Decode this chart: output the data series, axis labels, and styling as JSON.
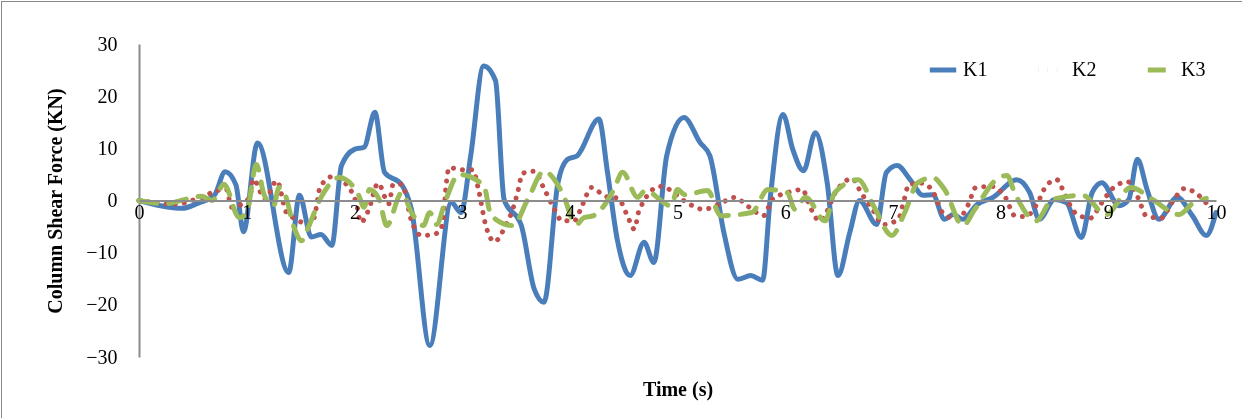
{
  "chart_data": {
    "type": "line",
    "xlabel": "Time (s)",
    "ylabel": "Column Shear Force (KN)",
    "xlim": [
      0,
      10
    ],
    "xticks": [
      0,
      1,
      2,
      3,
      4,
      5,
      6,
      7,
      8,
      9,
      10
    ],
    "ylim": [
      -30,
      30
    ],
    "yticks": [
      -30,
      -20,
      -10,
      0,
      10,
      20,
      30
    ],
    "grid": false,
    "legend": "top right",
    "marker": "none",
    "series": [
      {
        "name": "K1",
        "color": "#4a7ebb",
        "line_style": "solid",
        "x": [
          0,
          0.2,
          0.4,
          0.55,
          0.7,
          0.8,
          0.9,
          0.97,
          1.1,
          1.39,
          1.49,
          1.6,
          1.69,
          1.79,
          1.88,
          2.0,
          2.09,
          2.19,
          2.28,
          2.44,
          2.53,
          2.7,
          2.9,
          2.99,
          3.08,
          3.2,
          3.31,
          3.39,
          3.55,
          3.67,
          3.76,
          3.89,
          3.98,
          4.07,
          4.27,
          4.35,
          4.44,
          4.56,
          4.69,
          4.78,
          4.9,
          5.06,
          5.21,
          5.3,
          5.43,
          5.56,
          5.68,
          5.79,
          5.86,
          5.98,
          6.07,
          6.17,
          6.28,
          6.39,
          6.49,
          6.6,
          6.69,
          6.85,
          6.94,
          7.04,
          7.16,
          7.28,
          7.37,
          7.48,
          7.56,
          7.65,
          7.78,
          7.93,
          8.15,
          8.27,
          8.36,
          8.5,
          8.61,
          8.75,
          8.85,
          8.94,
          9.1,
          9.19,
          9.27,
          9.36,
          9.47,
          9.64,
          9.78,
          9.91,
          10
        ],
        "values": [
          0,
          -1,
          -1.5,
          -0.5,
          1,
          5.5,
          3,
          -6,
          11,
          -13.8,
          1,
          -7,
          -6.5,
          -8.6,
          6.7,
          9.8,
          10.2,
          16.9,
          5.4,
          3,
          -1.7,
          -27.8,
          -0.4,
          -2.3,
          8.6,
          25.8,
          23,
          0.2,
          -4.8,
          -17,
          -19.5,
          3.4,
          7.9,
          8.6,
          15.6,
          5.4,
          -7.4,
          -14.4,
          -8,
          -11.9,
          8.6,
          15.9,
          11.1,
          8.6,
          -6.1,
          -15.1,
          -14.4,
          -15.3,
          0.2,
          16.5,
          9.8,
          5.7,
          13,
          3.4,
          -14.4,
          -6.1,
          0,
          -4.6,
          5.4,
          6.7,
          4,
          1,
          1.1,
          -3.6,
          -2.7,
          -3.6,
          -0.8,
          0.6,
          4,
          1.5,
          -3.6,
          0.2,
          -0.4,
          -7.1,
          1.5,
          3.4,
          -1,
          0.2,
          7.9,
          2.1,
          -3.6,
          0.6,
          -2.9,
          -6.7,
          -2.3
        ]
      },
      {
        "name": "K2",
        "color": "#c0504d",
        "line_style": "dotted",
        "x": [
          0,
          0.35,
          0.52,
          0.81,
          0.86,
          1.03,
          1.06,
          1.17,
          1.28,
          1.37,
          1.6,
          1.65,
          1.68,
          1.8,
          1.94,
          2.02,
          2.06,
          2.13,
          2.22,
          2.32,
          2.36,
          2.44,
          2.53,
          2.62,
          2.74,
          2.82,
          2.85,
          2.88,
          2.99,
          3.1,
          3.15,
          3.22,
          3.3,
          3.4,
          3.47,
          3.52,
          3.56,
          3.67,
          3.76,
          3.84,
          3.93,
          4.04,
          4.12,
          4.2,
          4.33,
          4.45,
          4.53,
          4.6,
          4.64,
          4.84,
          5.12,
          5.24,
          5.38,
          5.53,
          5.66,
          5.8,
          5.88,
          6.02,
          6.16,
          6.23,
          6.32,
          6.49,
          6.62,
          6.71,
          6.81,
          6.91,
          7.05,
          7.1,
          7.15,
          7.28,
          7.39,
          7.46,
          7.6,
          7.7,
          7.77,
          7.92,
          8.05,
          8.13,
          8.23,
          8.34,
          8.42,
          8.52,
          8.6,
          8.69,
          8.83,
          8.94,
          9.04,
          9.18,
          9.28,
          9.35,
          9.49,
          9.59,
          9.71,
          9.82,
          9.94
        ],
        "values": [
          0,
          -0.7,
          0.2,
          2.2,
          -1.3,
          0.6,
          4.1,
          0.3,
          3.8,
          -2.3,
          -4.5,
          -1,
          2.5,
          4.6,
          2.7,
          -0.7,
          -4.2,
          -1.9,
          3.3,
          -0.6,
          3.1,
          3.1,
          -3.9,
          -6.7,
          -6.5,
          -4.6,
          2.7,
          6.3,
          5.9,
          5.9,
          2.3,
          -4.8,
          -7.9,
          -5,
          -1.7,
          1.9,
          5.2,
          5.6,
          2.3,
          -1,
          -3.9,
          -3.9,
          -0.7,
          2.5,
          0.8,
          0.4,
          -2.7,
          -5.5,
          -2.1,
          2.7,
          -0.8,
          -1.7,
          -0.8,
          0.6,
          -1.2,
          -2.9,
          0.2,
          1.5,
          2.1,
          -1.2,
          -3.9,
          2.3,
          4.2,
          1.3,
          -1.7,
          -4.6,
          -3.6,
          -0.2,
          3.1,
          3.3,
          1,
          -2.3,
          -3.6,
          -0.8,
          2.5,
          2.7,
          0.4,
          -2.9,
          -3.1,
          -0.6,
          2.7,
          4,
          1,
          -2.3,
          -3.4,
          -0.4,
          2.3,
          3.6,
          0.4,
          -2.9,
          -3.4,
          -0.4,
          2.3,
          1.3,
          -1.2
        ]
      },
      {
        "name": "K3",
        "color": "#9bbb59",
        "line_style": "dashed",
        "x": [
          0,
          0.24,
          0.58,
          0.68,
          0.79,
          0.93,
          1.0,
          1.09,
          1.16,
          1.25,
          1.3,
          1.35,
          1.44,
          1.51,
          1.56,
          1.69,
          1.86,
          2.04,
          2.09,
          2.14,
          2.23,
          2.3,
          2.44,
          2.53,
          2.64,
          2.7,
          2.76,
          2.85,
          2.97,
          3.2,
          3.27,
          3.47,
          3.61,
          3.76,
          3.93,
          4.06,
          4.13,
          4.22,
          4.41,
          4.49,
          4.63,
          4.7,
          4.94,
          5.0,
          5.07,
          5.28,
          5.4,
          5.69,
          5.84,
          6.02,
          6.09,
          6.19,
          6.37,
          6.46,
          6.68,
          6.82,
          6.99,
          7.11,
          7.23,
          7.37,
          7.48,
          7.65,
          7.76,
          7.96,
          8.06,
          8.13,
          8.33,
          8.48,
          8.76,
          8.98,
          9.21,
          9.41,
          9.66,
          9.78,
          9.91
        ],
        "values": [
          0,
          -0.6,
          0.8,
          0,
          3.1,
          -3.3,
          -2.3,
          6.9,
          1.2,
          -1,
          2.5,
          1.5,
          -5.2,
          -7.7,
          -5.7,
          0.6,
          4.4,
          1,
          -1.3,
          2.1,
          0.2,
          -4.8,
          1.5,
          -2.3,
          -4.8,
          -2.3,
          -4.6,
          0.2,
          5,
          2.9,
          -2.9,
          -4.8,
          0.2,
          5.6,
          1.5,
          -4.6,
          -3.3,
          -2.9,
          2.1,
          5.4,
          0.6,
          1.9,
          -1,
          2.1,
          1.1,
          1.9,
          -2.9,
          -2.3,
          2.1,
          1.5,
          -1.7,
          0.6,
          -3.9,
          1.5,
          4,
          -1,
          -6.7,
          -2.3,
          3.4,
          4.4,
          2.1,
          -4.8,
          -1.7,
          4,
          4.8,
          1.5,
          -3.9,
          0.2,
          1,
          -2.7,
          2.5,
          0.2,
          -2.7,
          -0.6,
          0.4
        ]
      }
    ]
  }
}
